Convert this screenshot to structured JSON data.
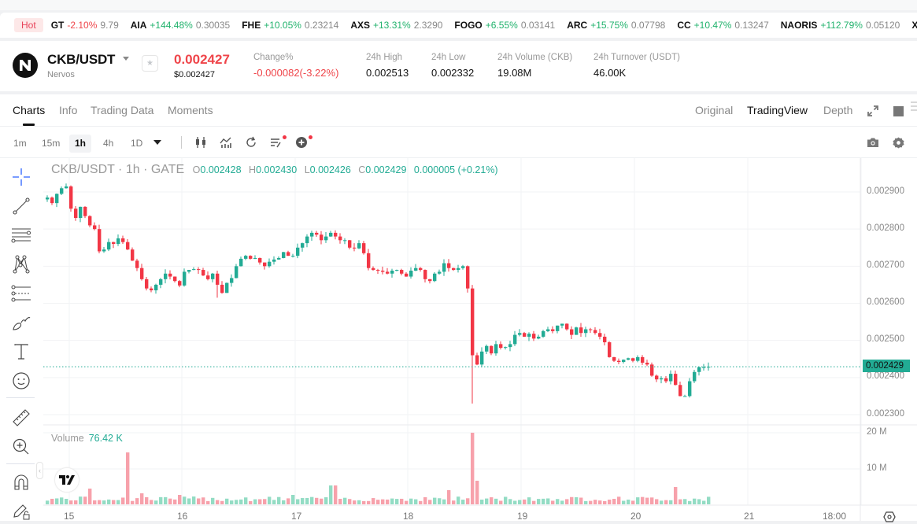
{
  "ticker": {
    "hot_label": "Hot",
    "items": [
      {
        "symbol": "GT",
        "change": "-2.10%",
        "dir": "dn",
        "price": "9.79"
      },
      {
        "symbol": "AIA",
        "change": "+144.48%",
        "dir": "up",
        "price": "0.30035"
      },
      {
        "symbol": "FHE",
        "change": "+10.05%",
        "dir": "up",
        "price": "0.23214"
      },
      {
        "symbol": "AXS",
        "change": "+13.31%",
        "dir": "up",
        "price": "2.3290"
      },
      {
        "symbol": "FOGO",
        "change": "+6.55%",
        "dir": "up",
        "price": "0.03141"
      },
      {
        "symbol": "ARC",
        "change": "+15.75%",
        "dir": "up",
        "price": "0.07798"
      },
      {
        "symbol": "CC",
        "change": "+10.47%",
        "dir": "up",
        "price": "0.13247"
      },
      {
        "symbol": "NAORIS",
        "change": "+112.79%",
        "dir": "up",
        "price": "0.05120"
      },
      {
        "symbol": "XA",
        "change": "",
        "dir": "up",
        "price": ""
      }
    ]
  },
  "header": {
    "pair": "CKB/USDT",
    "name": "Nervos",
    "last_price": "0.002427",
    "last_price_usd": "$0.002427",
    "stats": [
      {
        "label": "Change%",
        "value": "-0.000082(-3.22%)",
        "dir": "dn"
      },
      {
        "label": "24h High",
        "value": "0.002513"
      },
      {
        "label": "24h Low",
        "value": "0.002332"
      },
      {
        "label": "24h Volume (CKB)",
        "value": "19.08M"
      },
      {
        "label": "24h Turnover (USDT)",
        "value": "46.00K"
      }
    ]
  },
  "tabs": {
    "left": [
      "Charts",
      "Info",
      "Trading Data",
      "Moments"
    ],
    "active": "Charts",
    "views": [
      "Original",
      "TradingView",
      "Depth"
    ],
    "active_view": "TradingView"
  },
  "toolbar": {
    "timeframes": [
      "1m",
      "15m",
      "1h",
      "4h",
      "1D"
    ],
    "active_timeframe": "1h"
  },
  "chart": {
    "legend_title": "CKB/USDT · 1h · GATE",
    "ohlc": {
      "O": "0.002428",
      "H": "0.002430",
      "L": "0.002426",
      "C": "0.002429",
      "change": "0.000005 (+0.21%)"
    },
    "volume_label": "Volume",
    "volume_value": "76.42 K",
    "last_price_tag": "0.002429",
    "y_ticks": [
      "0.002900",
      "0.002800",
      "0.002700",
      "0.002600",
      "0.002500",
      "0.002400",
      "0.002300"
    ],
    "vol_ticks": [
      "20 M",
      "10 M"
    ],
    "x_ticks": [
      "15",
      "16",
      "17",
      "18",
      "19",
      "20",
      "21",
      "18:00"
    ],
    "colors": {
      "up": "#22ab94",
      "down": "#f23645",
      "up_vol": "#93dcc4",
      "down_vol": "#f7a1ab"
    }
  },
  "chart_data": {
    "type": "candlestick",
    "title": "CKB/USDT · 1h · GATE",
    "ylim": [
      0.00228,
      0.00294
    ],
    "y_ticks": [
      0.0029,
      0.0028,
      0.0027,
      0.0026,
      0.0025,
      0.0024,
      0.0023
    ],
    "x_ticks": [
      "15",
      "16",
      "17",
      "18",
      "19",
      "20",
      "21",
      "18:00"
    ],
    "volume_ylim": [
      0,
      21000000
    ],
    "closes": [
      0.002885,
      0.00287,
      0.002895,
      0.00291,
      0.002915,
      0.002855,
      0.00283,
      0.00286,
      0.002835,
      0.00281,
      0.0028,
      0.00274,
      0.002745,
      0.002765,
      0.00276,
      0.002775,
      0.002765,
      0.002745,
      0.002715,
      0.002695,
      0.002665,
      0.00264,
      0.002635,
      0.00265,
      0.002665,
      0.00268,
      0.002672,
      0.00266,
      0.002648,
      0.002685,
      0.00269,
      0.002692,
      0.00269,
      0.002675,
      0.002665,
      0.00268,
      0.00265,
      0.002628,
      0.002655,
      0.002668,
      0.0027,
      0.00272,
      0.002728,
      0.00272,
      0.002722,
      0.00271,
      0.0027,
      0.002712,
      0.002718,
      0.002722,
      0.002738,
      0.002728,
      0.002728,
      0.00275,
      0.002762,
      0.00278,
      0.00279,
      0.002785,
      0.00277,
      0.00278,
      0.00279,
      0.00278,
      0.00277,
      0.00277,
      0.00275,
      0.002748,
      0.002762,
      0.002735,
      0.002695,
      0.00269,
      0.002688,
      0.002685,
      0.00268,
      0.002688,
      0.00269,
      0.00268,
      0.002672,
      0.002688,
      0.002695,
      0.00269,
      0.002665,
      0.00266,
      0.00268,
      0.002685,
      0.002708,
      0.002695,
      0.00269,
      0.002695,
      0.0027,
      0.00264,
      0.00246,
      0.002435,
      0.00247,
      0.002485,
      0.002465,
      0.00249,
      0.00248,
      0.002482,
      0.00249,
      0.002515,
      0.00252,
      0.00251,
      0.002518,
      0.002505,
      0.00251,
      0.002525,
      0.00253,
      0.002525,
      0.00254,
      0.002545,
      0.00253,
      0.002515,
      0.002535,
      0.00252,
      0.00253,
      0.002528,
      0.00252,
      0.00251,
      0.002495,
      0.002455,
      0.002445,
      0.002442,
      0.002448,
      0.002452,
      0.002445,
      0.002455,
      0.00244,
      0.002435,
      0.002405,
      0.002395,
      0.002398,
      0.00239,
      0.00241,
      0.00238,
      0.00235,
      0.00235,
      0.00239,
      0.002415,
      0.002428,
      0.002428,
      0.002429
    ]
  }
}
